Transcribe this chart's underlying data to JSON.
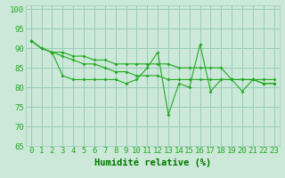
{
  "hours": [
    0,
    1,
    2,
    3,
    4,
    5,
    6,
    7,
    8,
    9,
    10,
    11,
    12,
    13,
    14,
    15,
    16,
    17,
    18,
    19,
    20,
    21,
    22,
    23
  ],
  "line1": [
    92,
    90,
    89,
    89,
    88,
    88,
    87,
    87,
    86,
    86,
    86,
    86,
    86,
    86,
    85,
    85,
    85,
    85,
    85,
    82,
    82,
    82,
    81,
    81
  ],
  "line2": [
    92,
    90,
    89,
    88,
    87,
    86,
    86,
    85,
    84,
    84,
    83,
    83,
    83,
    82,
    82,
    82,
    82,
    82,
    82,
    82,
    82,
    82,
    82,
    82
  ],
  "line3": [
    92,
    90,
    89,
    83,
    82,
    82,
    82,
    82,
    82,
    81,
    82,
    85,
    89,
    73,
    81,
    80,
    91,
    79,
    82,
    82,
    79,
    82,
    81,
    81
  ],
  "line_color": "#22aa22",
  "bg_color": "#cce8d8",
  "grid_color": "#99ccbb",
  "xlabel": "Humidité relative (%)",
  "xlabel_color": "#007700",
  "ylim": [
    65,
    101
  ],
  "yticks": [
    65,
    70,
    75,
    80,
    85,
    90,
    95,
    100
  ],
  "tick_fontsize": 6.5,
  "label_fontsize": 7.5
}
